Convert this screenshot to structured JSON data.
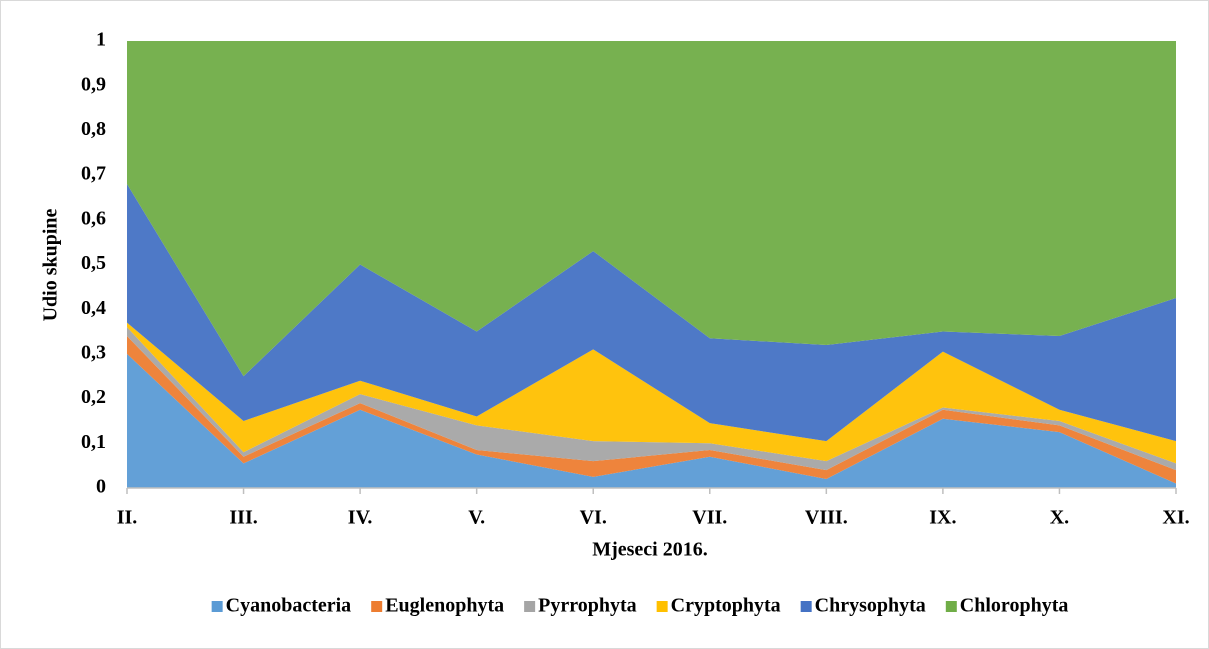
{
  "chart_data": {
    "type": "stacked_area",
    "xlabel": "Mjeseci 2016.",
    "ylabel": "Udio skupine",
    "categories": [
      "II.",
      "III.",
      "IV.",
      "V.",
      "VI.",
      "VII.",
      "VIII.",
      "IX.",
      "X.",
      "XI."
    ],
    "series": [
      {
        "name": "Cyanobacteria",
        "color": "#5b9bd5",
        "values": [
          0.3,
          0.055,
          0.175,
          0.075,
          0.025,
          0.07,
          0.02,
          0.155,
          0.125,
          0.01
        ]
      },
      {
        "name": "Euglenophyta",
        "color": "#ed7d31",
        "values": [
          0.04,
          0.015,
          0.015,
          0.01,
          0.035,
          0.015,
          0.02,
          0.02,
          0.015,
          0.03
        ]
      },
      {
        "name": "Pyrrophyta",
        "color": "#a5a5a5",
        "values": [
          0.02,
          0.01,
          0.02,
          0.055,
          0.045,
          0.015,
          0.02,
          0.005,
          0.01,
          0.015
        ]
      },
      {
        "name": "Cryptophyta",
        "color": "#ffc000",
        "values": [
          0.01,
          0.07,
          0.03,
          0.02,
          0.205,
          0.045,
          0.045,
          0.125,
          0.025,
          0.05
        ]
      },
      {
        "name": "Chrysophyta",
        "color": "#4472c4",
        "values": [
          0.31,
          0.1,
          0.26,
          0.19,
          0.22,
          0.19,
          0.215,
          0.045,
          0.165,
          0.32
        ]
      },
      {
        "name": "Chlorophyta",
        "color": "#70ad47",
        "values": [
          0.32,
          0.75,
          0.5,
          0.65,
          0.47,
          0.665,
          0.68,
          0.65,
          0.66,
          0.575
        ]
      }
    ],
    "ylim": [
      0,
      1
    ],
    "yticks": [
      0,
      {
        "value": 0.1,
        "label": "0,1"
      },
      {
        "value": 0.2,
        "label": "0,2"
      },
      {
        "value": 0.3,
        "label": "0,3"
      },
      {
        "value": 0.4,
        "label": "0,4"
      },
      {
        "value": 0.5,
        "label": "0,5"
      },
      {
        "value": 0.6,
        "label": "0,6"
      },
      {
        "value": 0.7,
        "label": "0,7"
      },
      {
        "value": 0.8,
        "label": "0,8"
      },
      {
        "value": 0.9,
        "label": "0,9"
      },
      1
    ],
    "legend": "bottom"
  }
}
